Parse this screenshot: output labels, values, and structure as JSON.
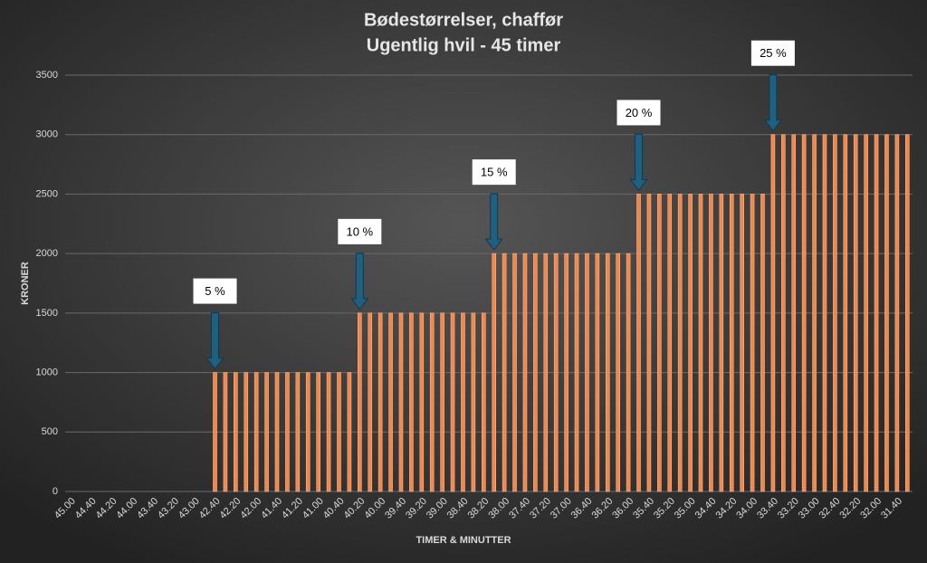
{
  "chart_data": {
    "type": "bar",
    "title": "Bødestørrelser, chaffør",
    "subtitle": "Ugentlig hvil - 45 timer",
    "x_label": "TIMER & MINUTTER",
    "y_label": "KRONER",
    "categories": [
      "45.00",
      null,
      "44.40",
      null,
      "44.20",
      null,
      "44.00",
      null,
      "43.40",
      null,
      "43.20",
      null,
      "43.00",
      null,
      "42.40",
      null,
      "42.20",
      null,
      "42.00",
      null,
      "41.40",
      null,
      "41.20",
      null,
      "41.00",
      null,
      "40.40",
      null,
      "40.20",
      null,
      "40.00",
      null,
      "39.40",
      null,
      "39.20",
      null,
      "39.00",
      null,
      "38.40",
      null,
      "38.20",
      null,
      "38.00",
      null,
      "37.40",
      null,
      "37.20",
      null,
      "37.00",
      null,
      "36.40",
      null,
      "36.20",
      null,
      "36.00",
      null,
      "35.40",
      null,
      "35.20",
      null,
      "35.00",
      null,
      "34.40",
      null,
      "34.20",
      null,
      "34.00",
      null,
      "33.40",
      null,
      "33.20",
      null,
      "33.00",
      null,
      "32.40",
      null,
      "32.20",
      null,
      "32.00",
      null,
      "31.40",
      null
    ],
    "values": [
      0,
      0,
      0,
      0,
      0,
      0,
      0,
      0,
      0,
      0,
      0,
      0,
      0,
      0,
      1000,
      1000,
      1000,
      1000,
      1000,
      1000,
      1000,
      1000,
      1000,
      1000,
      1000,
      1000,
      1000,
      1000,
      1500,
      1500,
      1500,
      1500,
      1500,
      1500,
      1500,
      1500,
      1500,
      1500,
      1500,
      1500,
      1500,
      2000,
      2000,
      2000,
      2000,
      2000,
      2000,
      2000,
      2000,
      2000,
      2000,
      2000,
      2000,
      2000,
      2000,
      2500,
      2500,
      2500,
      2500,
      2500,
      2500,
      2500,
      2500,
      2500,
      2500,
      2500,
      2500,
      2500,
      3000,
      3000,
      3000,
      3000,
      3000,
      3000,
      3000,
      3000,
      3000,
      3000,
      3000,
      3000,
      3000,
      3000
    ],
    "color": "#f2874a",
    "ylim": [
      0,
      3500
    ],
    "yticks": [
      0,
      500,
      1000,
      1500,
      2000,
      2500,
      3000,
      3500
    ],
    "grid": true,
    "annotations": [
      "5 %",
      "10 %",
      "15 %",
      "20 %",
      "25 %"
    ]
  }
}
